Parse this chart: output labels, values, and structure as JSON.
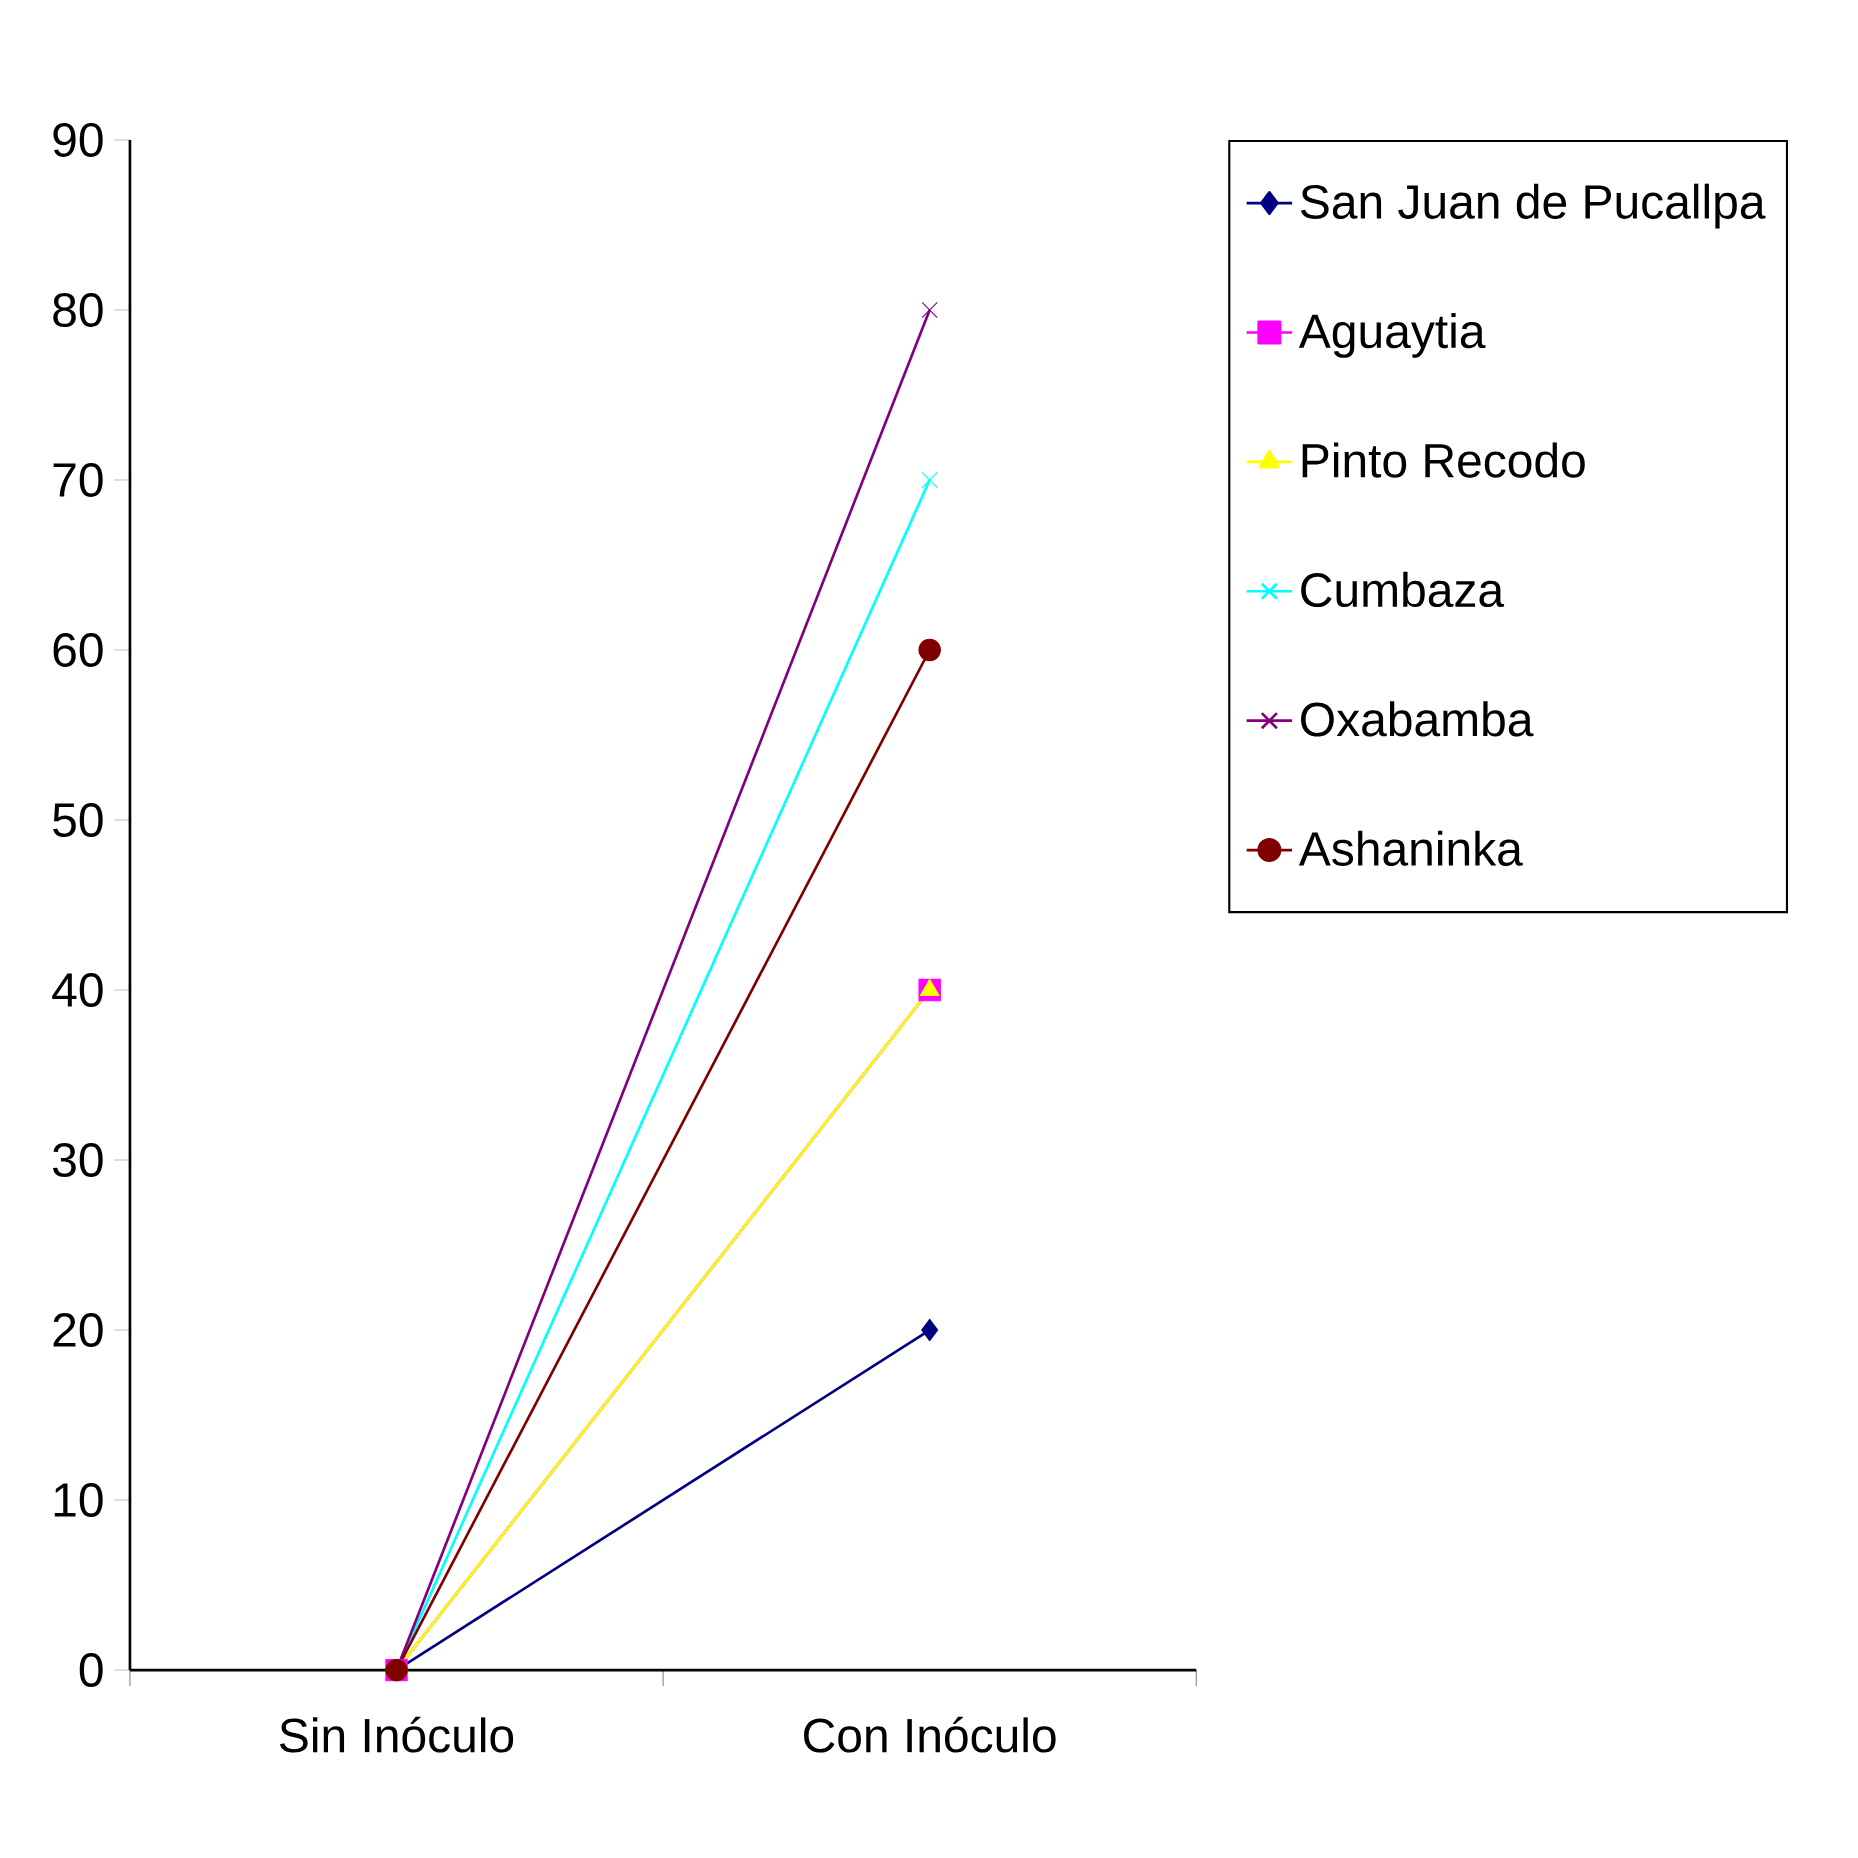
{
  "chart_data": {
    "type": "line",
    "categories": [
      "Sin Inóculo",
      "Con Inóculo"
    ],
    "ylim": [
      0,
      90
    ],
    "yticks": [
      0,
      10,
      20,
      30,
      40,
      50,
      60,
      70,
      80,
      90
    ],
    "legend": "right",
    "grid": false,
    "series": [
      {
        "name": "San Juan de Pucallpa",
        "color": "#000080",
        "marker": "diamond",
        "values": [
          0,
          20
        ]
      },
      {
        "name": "Aguaytia",
        "color": "#ff00ff",
        "marker": "square",
        "values": [
          0,
          40
        ]
      },
      {
        "name": "Pinto Recodo",
        "color": "#ffff00",
        "marker": "triangle",
        "values": [
          0,
          40
        ]
      },
      {
        "name": "Cumbaza",
        "color": "#00ffff",
        "marker": "cross",
        "values": [
          0,
          70
        ]
      },
      {
        "name": "Oxabamba",
        "color": "#800080",
        "marker": "cross",
        "values": [
          0,
          80
        ]
      },
      {
        "name": "Ashaninka",
        "color": "#800000",
        "marker": "circle",
        "values": [
          0,
          60
        ]
      }
    ]
  }
}
